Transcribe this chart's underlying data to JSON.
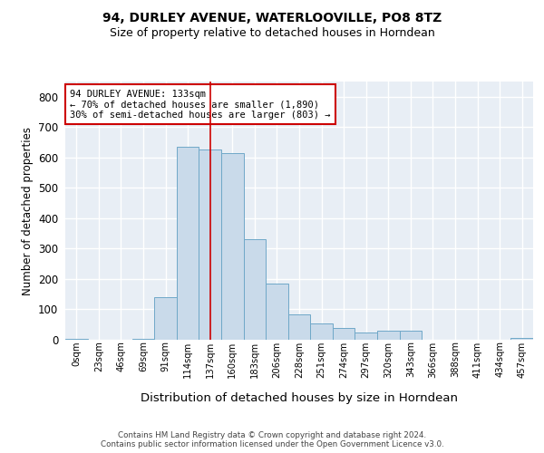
{
  "title1": "94, DURLEY AVENUE, WATERLOOVILLE, PO8 8TZ",
  "title2": "Size of property relative to detached houses in Horndean",
  "xlabel": "Distribution of detached houses by size in Horndean",
  "ylabel": "Number of detached properties",
  "bin_labels": [
    "0sqm",
    "23sqm",
    "46sqm",
    "69sqm",
    "91sqm",
    "114sqm",
    "137sqm",
    "160sqm",
    "183sqm",
    "206sqm",
    "228sqm",
    "251sqm",
    "274sqm",
    "297sqm",
    "320sqm",
    "343sqm",
    "366sqm",
    "388sqm",
    "411sqm",
    "434sqm",
    "457sqm"
  ],
  "bar_heights": [
    2,
    0,
    0,
    2,
    140,
    635,
    625,
    615,
    330,
    185,
    85,
    55,
    40,
    25,
    30,
    30,
    0,
    0,
    0,
    0,
    5
  ],
  "bar_color": "#c9daea",
  "bar_edge_color": "#6fa8c8",
  "vline_x_index": 6,
  "vline_color": "#cc0000",
  "annotation_text": "94 DURLEY AVENUE: 133sqm\n← 70% of detached houses are smaller (1,890)\n30% of semi-detached houses are larger (803) →",
  "annotation_box_color": "white",
  "annotation_box_edge": "#cc0000",
  "ylim": [
    0,
    850
  ],
  "yticks": [
    0,
    100,
    200,
    300,
    400,
    500,
    600,
    700,
    800
  ],
  "footer_text": "Contains HM Land Registry data © Crown copyright and database right 2024.\nContains public sector information licensed under the Open Government Licence v3.0.",
  "bg_color": "#ffffff",
  "plot_bg_color": "#e8eef5",
  "grid_color": "#ffffff",
  "title1_fontsize": 10,
  "title2_fontsize": 9
}
